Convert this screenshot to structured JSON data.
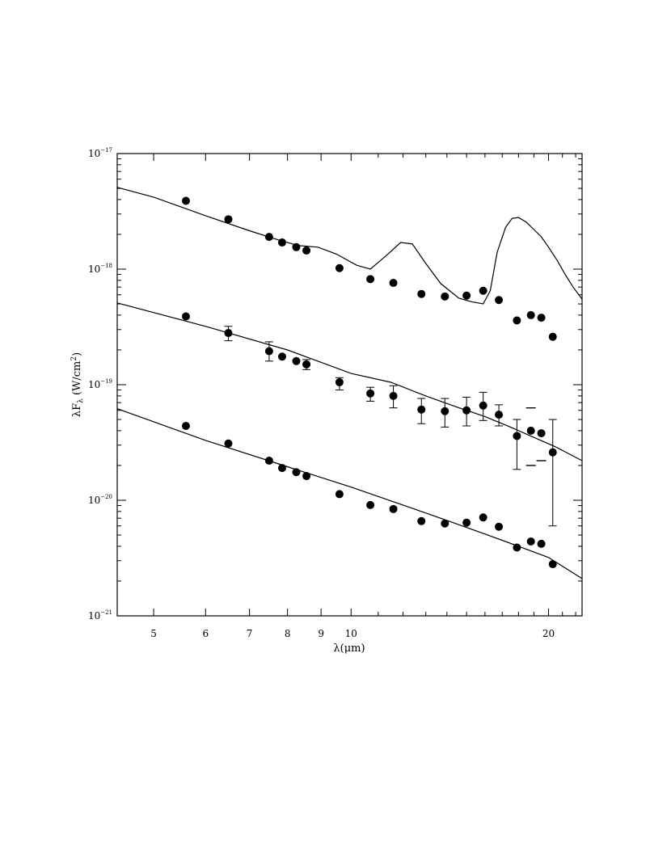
{
  "chart_data": {
    "type": "scatter",
    "title": "",
    "xlabel": "λ(μm)",
    "ylabel": "λF",
    "ylabel_subscript": "λ",
    "ylabel_units": "(W/cm",
    "ylabel_units_sup": "2",
    "ylabel_units_end": ")",
    "xscale": "log",
    "yscale": "log",
    "xlim": [
      4.4,
      22.5
    ],
    "ylim": [
      1e-21,
      1e-17
    ],
    "grid": false,
    "x_ticks": [
      {
        "value": 5,
        "label": "5"
      },
      {
        "value": 6,
        "label": "6"
      },
      {
        "value": 7,
        "label": "7"
      },
      {
        "value": 8,
        "label": "8"
      },
      {
        "value": 9,
        "label": "9"
      },
      {
        "value": 10,
        "label": "10"
      },
      {
        "value": 20,
        "label": "20"
      }
    ],
    "y_ticks": [
      {
        "value": 1e-17,
        "base": "10",
        "exp": "−17"
      },
      {
        "value": 1e-18,
        "base": "10",
        "exp": "−18"
      },
      {
        "value": 1e-19,
        "base": "10",
        "exp": "−19"
      },
      {
        "value": 1e-20,
        "base": "10",
        "exp": "−20"
      },
      {
        "value": 1e-21,
        "base": "10",
        "exp": "−21"
      }
    ],
    "series": [
      {
        "style": "points",
        "x": [
          5.6,
          6.5,
          7.5,
          7.85,
          8.25,
          8.55,
          9.6,
          10.7,
          11.6,
          12.8,
          13.9,
          15.0,
          15.9,
          16.8,
          17.9,
          18.8,
          19.5,
          20.3
        ],
        "y": [
          3.9e-18,
          2.7e-18,
          1.9e-18,
          1.7e-18,
          1.55e-18,
          1.45e-18,
          1.02e-18,
          8.2e-19,
          7.6e-19,
          6.1e-19,
          5.8e-19,
          5.9e-19,
          6.5e-19,
          5.4e-19,
          3.6e-19,
          4e-19,
          3.8e-19,
          2.6e-19
        ]
      },
      {
        "style": "line",
        "x": [
          4.4,
          5.0,
          6.0,
          7.0,
          7.6,
          8.3,
          8.9,
          9.5,
          10.2,
          10.7,
          11.3,
          11.9,
          12.4,
          13.0,
          13.7,
          14.6,
          15.3,
          15.9,
          16.3,
          16.7,
          17.2,
          17.6,
          18.0,
          18.5,
          19.0,
          19.5,
          20.0,
          20.6,
          21.2,
          21.8,
          22.5
        ],
        "y": [
          5.1e-18,
          4.2e-18,
          2.9e-18,
          2.15e-18,
          1.85e-18,
          1.6e-18,
          1.55e-18,
          1.35e-18,
          1.08e-18,
          1e-18,
          1.3e-18,
          1.7e-18,
          1.65e-18,
          1.12e-18,
          7.5e-19,
          5.6e-19,
          5.2e-19,
          5e-19,
          6.5e-19,
          1.4e-18,
          2.3e-18,
          2.75e-18,
          2.8e-18,
          2.55e-18,
          2.2e-18,
          1.9e-18,
          1.55e-18,
          1.2e-18,
          9e-19,
          7e-19,
          5.5e-19
        ]
      },
      {
        "style": "points_with_errorbars",
        "x": [
          5.6,
          6.5,
          7.5,
          7.85,
          8.25,
          8.55,
          9.6,
          10.7,
          11.6,
          12.8,
          13.9,
          15.0,
          15.9,
          16.8,
          17.9,
          18.8,
          19.5,
          20.3
        ],
        "y": [
          3.9e-19,
          2.8e-19,
          1.95e-19,
          1.75e-19,
          1.6e-19,
          1.5e-19,
          1.05e-19,
          8.4e-20,
          8e-20,
          6.1e-20,
          5.9e-20,
          6e-20,
          6.6e-20,
          5.5e-20,
          3.6e-20,
          4e-20,
          3.8e-20,
          2.6e-20
        ],
        "err_low": [
          null,
          2.4e-19,
          1.6e-19,
          null,
          null,
          1.35e-19,
          9e-20,
          7.2e-20,
          6.3e-20,
          4.6e-20,
          4.3e-20,
          4.4e-20,
          4.9e-20,
          4.4e-20,
          1.85e-20,
          null,
          null,
          6e-21
        ],
        "err_high": [
          null,
          3.2e-19,
          2.35e-19,
          null,
          null,
          1.65e-19,
          1.15e-19,
          9.5e-20,
          9.8e-20,
          7.6e-20,
          7.6e-20,
          7.8e-20,
          8.6e-20,
          6.7e-20,
          5e-20,
          null,
          null,
          5e-20
        ]
      },
      {
        "style": "tick_marks",
        "x": [
          18.8,
          18.8,
          19.5
        ],
        "y": [
          6.3e-20,
          2e-20,
          2.2e-20
        ]
      },
      {
        "style": "line",
        "x": [
          4.4,
          6.0,
          8.0,
          10.0,
          11.5,
          13.0,
          14.5,
          16.0,
          17.5,
          19.0,
          20.5,
          22.5
        ],
        "y": [
          5.1e-19,
          3.2e-19,
          2e-19,
          1.25e-19,
          1.05e-19,
          8e-20,
          6.4e-20,
          5.3e-20,
          4.3e-20,
          3.5e-20,
          2.9e-20,
          2.2e-20
        ]
      },
      {
        "style": "points",
        "x": [
          5.6,
          6.5,
          7.5,
          7.85,
          8.25,
          8.55,
          9.6,
          10.7,
          11.6,
          12.8,
          13.9,
          15.0,
          15.9,
          16.8,
          17.9,
          18.8,
          19.5,
          20.3
        ],
        "y": [
          4.4e-20,
          3.1e-20,
          2.2e-20,
          1.9e-20,
          1.75e-20,
          1.62e-20,
          1.13e-20,
          9.1e-21,
          8.4e-21,
          6.6e-21,
          6.3e-21,
          6.4e-21,
          7.1e-21,
          5.9e-21,
          3.9e-21,
          4.4e-21,
          4.2e-21,
          2.8e-21
        ]
      },
      {
        "style": "line",
        "x": [
          4.4,
          6.0,
          8.0,
          10.0,
          12.0,
          14.0,
          16.0,
          18.0,
          20.0,
          22.5
        ],
        "y": [
          6.2e-20,
          3.3e-20,
          1.95e-20,
          1.3e-20,
          9.1e-21,
          6.7e-21,
          5.1e-21,
          4e-21,
          3.2e-21,
          2.1e-21
        ]
      }
    ]
  }
}
